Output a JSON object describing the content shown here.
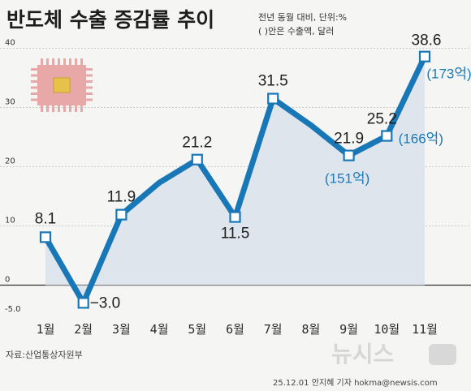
{
  "title": "반도체 수출 증감률 추이",
  "unit_note": "전년 동월 대비, 단위:%",
  "amount_note": "( )안은 수출액, 달러",
  "source": "자료:산업통상자원부",
  "byline": "25.12.01 안지혜 기자 hokma@newsis.com",
  "watermark": "뉴시스",
  "icon": "semiconductor-chip-icon",
  "colors": {
    "line": "#1877b6",
    "area": "#dde3ec",
    "amount_text": "#1a7ab8",
    "chip_body": "#e8a8a8",
    "chip_core": "#e6c24a"
  },
  "chart_data": {
    "type": "line",
    "categories": [
      "1월",
      "2월",
      "3월",
      "4월",
      "5월",
      "6월",
      "7월",
      "8월",
      "9월",
      "10월",
      "11월"
    ],
    "values": [
      8.1,
      -3.0,
      11.9,
      17.3,
      21.2,
      11.5,
      31.5,
      27.0,
      21.9,
      25.2,
      38.6
    ],
    "data_labels": [
      "8.1",
      "−3.0",
      "11.9",
      "",
      "21.2",
      "11.5",
      "31.5",
      "",
      "21.9",
      "25.2",
      "38.6"
    ],
    "amount_labels": [
      {
        "category": "9월",
        "text": "(151억)"
      },
      {
        "category": "10월",
        "text": "(166억)"
      },
      {
        "category": "11월",
        "text": "(173억)"
      }
    ],
    "y_ticks": [
      "40",
      "30",
      "20",
      "10",
      "0",
      "-5.0"
    ],
    "ylim": [
      -5,
      40
    ],
    "grid": true,
    "area_fill": true,
    "xlabel": "",
    "ylabel": ""
  }
}
